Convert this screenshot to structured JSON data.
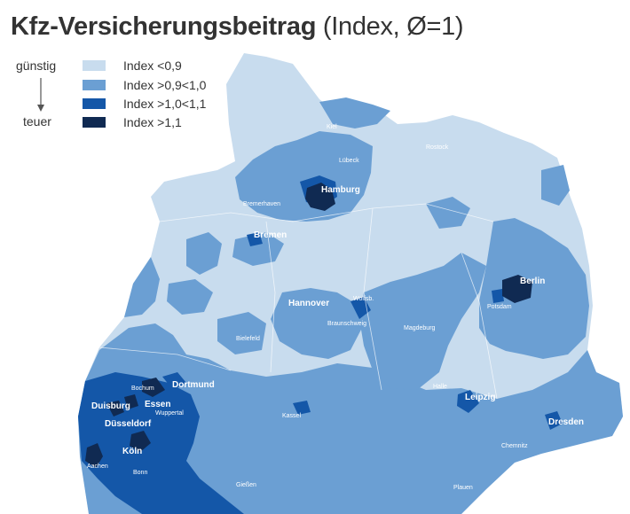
{
  "title": {
    "bold": "Kfz-Versicherungsbeitrag",
    "rest": " (Index, Ø=1)"
  },
  "scale": {
    "top": "günstig",
    "bottom": "teuer"
  },
  "legend": [
    {
      "label": "Index <0,9",
      "color": "#c8dcee"
    },
    {
      "label": "Index >0,9<1,0",
      "color": "#6b9fd3"
    },
    {
      "label": "Index >1,0<1,1",
      "color": "#1457a8"
    },
    {
      "label": "Index >1,1",
      "color": "#102a52"
    }
  ],
  "cities": {
    "hamburg": "Hamburg",
    "kiel": "Kiel",
    "luebeck": "Lübeck",
    "rostock": "Rostock",
    "bremerhaven": "Bremerhaven",
    "bremen": "Bremen",
    "berlin": "Berlin",
    "potsdam": "Potsdam",
    "hannover": "Hannover",
    "wolfsburg": "Wolfsb.",
    "braunschweig": "Braunschweig",
    "magdeburg": "Magdeburg",
    "bielefeld": "Bielefeld",
    "dortmund": "Dortmund",
    "bochum": "Bochum",
    "duisburg": "Duisburg",
    "essen": "Essen",
    "wuppertal": "Wuppertal",
    "duesseldorf": "Düsseldorf",
    "koeln": "Köln",
    "aachen": "Aachen",
    "bonn": "Bonn",
    "kassel": "Kassel",
    "halle": "Halle",
    "leipzig": "Leipzig",
    "dresden": "Dresden",
    "chemnitz": "Chemnitz",
    "plauen": "Plauen",
    "giessen": "Gießen"
  }
}
